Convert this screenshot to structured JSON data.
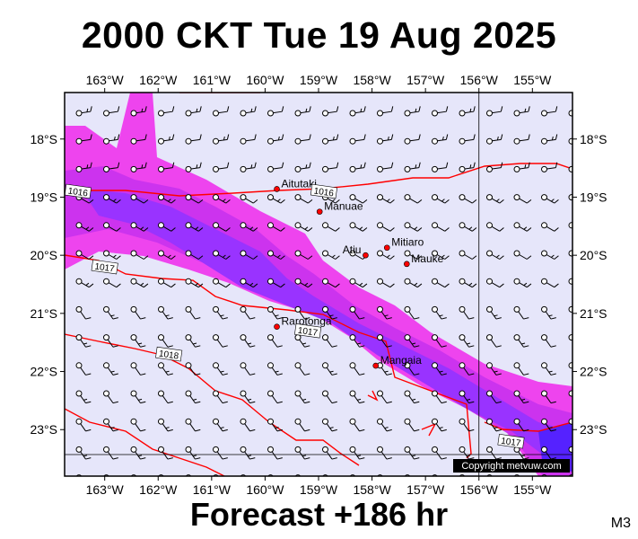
{
  "title": "2000 CKT Tue 19 Aug 2025",
  "footer": "Forecast +186 hr",
  "model": "M3",
  "copyright": "Copyright metvuw.com",
  "map": {
    "lon_range": [
      -163.75,
      -154.25
    ],
    "lat_range": [
      -23.8,
      -17.2
    ],
    "lon_ticks": [
      {
        "value": -163,
        "label": "163°W"
      },
      {
        "value": -162,
        "label": "162°W"
      },
      {
        "value": -161,
        "label": "161°W"
      },
      {
        "value": -160,
        "label": "160°W"
      },
      {
        "value": -159,
        "label": "159°W"
      },
      {
        "value": -158,
        "label": "158°W"
      },
      {
        "value": -157,
        "label": "157°W"
      },
      {
        "value": -156,
        "label": "156°W"
      },
      {
        "value": -155,
        "label": "155°W"
      }
    ],
    "lat_ticks": [
      {
        "value": -18,
        "label": "18°S"
      },
      {
        "value": -19,
        "label": "19°S"
      },
      {
        "value": -20,
        "label": "20°S"
      },
      {
        "value": -21,
        "label": "21°S"
      },
      {
        "value": -22,
        "label": "22°S"
      },
      {
        "value": -23,
        "label": "23°S"
      }
    ],
    "colors": {
      "background": "#e6e6fa",
      "precip_light": "#ee44ee",
      "precip_medium": "#cc33ee",
      "precip_heavy": "#9933ff",
      "precip_extreme": "#5522ff",
      "isobar": "#ff0000",
      "town": "#ff0000"
    },
    "towns": [
      {
        "name": "Aitutaki",
        "lon": -159.78,
        "lat": -18.86
      },
      {
        "name": "Manuae",
        "lon": -158.98,
        "lat": -19.25
      },
      {
        "name": "Mitiaro",
        "lon": -157.72,
        "lat": -19.87
      },
      {
        "name": "Atiu",
        "lon": -158.12,
        "lat": -20.0
      },
      {
        "name": "Mauke",
        "lon": -157.35,
        "lat": -20.15
      },
      {
        "name": "Rarotonga",
        "lon": -159.78,
        "lat": -21.23
      },
      {
        "name": "Mangaia",
        "lon": -157.93,
        "lat": -21.9
      }
    ],
    "isobar_labels": [
      {
        "text": "1016",
        "lon": -163.5,
        "lat": -18.9
      },
      {
        "text": "1016",
        "lon": -158.9,
        "lat": -18.9
      },
      {
        "text": "1017",
        "lon": -163.0,
        "lat": -20.2
      },
      {
        "text": "1017",
        "lon": -159.2,
        "lat": -21.3
      },
      {
        "text": "1018",
        "lon": -161.8,
        "lat": -21.7
      },
      {
        "text": "1017",
        "lon": -155.4,
        "lat": -23.2
      }
    ]
  }
}
